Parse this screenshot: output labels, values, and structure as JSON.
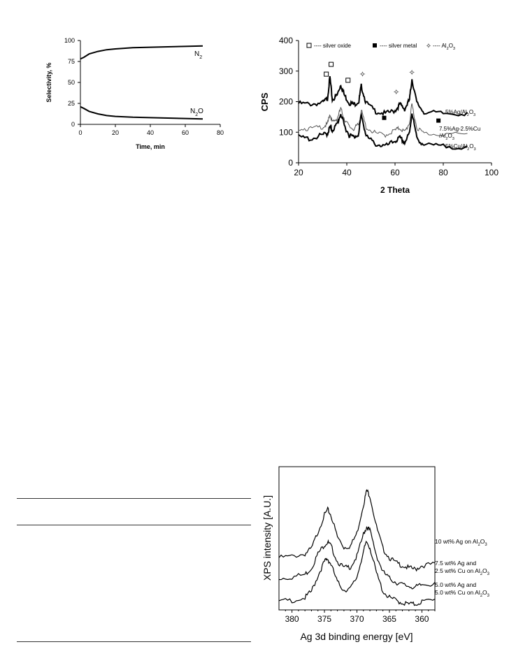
{
  "chart_data": [
    {
      "type": "line",
      "x_axis": {
        "label": "Time, min",
        "ticks": [
          "0",
          "20",
          "40",
          "60",
          "80"
        ],
        "range": [
          0,
          80
        ]
      },
      "y_axis": {
        "label": "Selectivity, %",
        "ticks": [
          "0",
          "25",
          "50",
          "75",
          "100"
        ],
        "range": [
          0,
          100
        ]
      },
      "series": [
        {
          "name": "N2",
          "label_main": "N",
          "label_sub": "2",
          "x": [
            0,
            2,
            5,
            10,
            15,
            20,
            30,
            40,
            50,
            60,
            70
          ],
          "y": [
            78,
            80,
            84,
            87,
            89,
            90,
            91.5,
            92,
            92.5,
            93,
            93.5
          ]
        },
        {
          "name": "N2O",
          "label_main": "N",
          "label_sub": "2",
          "label_end": "O",
          "x": [
            0,
            2,
            5,
            10,
            15,
            20,
            30,
            40,
            50,
            60,
            70
          ],
          "y": [
            21,
            19,
            15.5,
            12.5,
            10.5,
            9.5,
            8.5,
            8,
            7.5,
            7,
            6.5
          ]
        }
      ]
    },
    {
      "type": "line",
      "x_axis": {
        "label": "2 Theta",
        "ticks": [
          "20",
          "40",
          "60",
          "80",
          "100"
        ],
        "range": [
          20,
          100
        ]
      },
      "y_axis": {
        "label": "CPS",
        "ticks": [
          "0",
          "100",
          "200",
          "300",
          "400"
        ],
        "range": [
          0,
          400
        ]
      },
      "legend": [
        {
          "marker": "open-square",
          "text": "silver oxide"
        },
        {
          "marker": "filled-square",
          "text": "silver metal"
        },
        {
          "marker": "star",
          "text_main": "Al",
          "text_sub": "2",
          "text_end": "O",
          "text_sub2": "3"
        }
      ],
      "series": [
        {
          "name": "5%Ag/Al2O3",
          "label_parts": [
            [
              "5%Ag/Al",
              false
            ],
            [
              "2",
              true
            ],
            [
              "O",
              false
            ],
            [
              "3",
              true
            ]
          ],
          "x": [
            20,
            25,
            30,
            32,
            33,
            34,
            36,
            37.5,
            39,
            41,
            43,
            45,
            46,
            48,
            52,
            56,
            60,
            62,
            64,
            66,
            67,
            69,
            72,
            80,
            90
          ],
          "y": [
            198,
            196,
            200,
            215,
            285,
            210,
            225,
            260,
            225,
            200,
            195,
            205,
            255,
            200,
            172,
            165,
            175,
            195,
            180,
            210,
            278,
            200,
            170,
            165,
            165
          ]
        },
        {
          "name": "7.5%Ag-2.5%Cu/Al2O3",
          "label_parts": [
            [
              "7.5%Ag-2.5%Cu",
              false
            ]
          ],
          "label2_parts": [
            [
              "/Al",
              false
            ],
            [
              "2",
              true
            ],
            [
              "O",
              false
            ],
            [
              "3",
              true
            ]
          ],
          "x": [
            20,
            25,
            30,
            32,
            33,
            34,
            36,
            37.5,
            39,
            41,
            43,
            45,
            46,
            48,
            52,
            56,
            60,
            62,
            64,
            66,
            67,
            69,
            72,
            80,
            90
          ],
          "y": [
            118,
            115,
            122,
            130,
            165,
            135,
            150,
            180,
            148,
            122,
            115,
            130,
            175,
            120,
            100,
            95,
            110,
            118,
            104,
            135,
            195,
            120,
            100,
            98,
            96
          ]
        },
        {
          "name": "5%Cu/Al2O3",
          "label_parts": [
            [
              "5%Cu/Al",
              false
            ],
            [
              "2",
              true
            ],
            [
              "O",
              false
            ],
            [
              "3",
              true
            ]
          ],
          "x": [
            20,
            25,
            30,
            32,
            33,
            34,
            36,
            37.5,
            39,
            41,
            43,
            45,
            46,
            48,
            52,
            56,
            60,
            62,
            64,
            66,
            67,
            69,
            72,
            80,
            90
          ],
          "y": [
            88,
            82,
            95,
            100,
            120,
            110,
            130,
            165,
            125,
            95,
            88,
            100,
            165,
            90,
            65,
            58,
            75,
            85,
            70,
            100,
            170,
            85,
            62,
            58,
            55
          ]
        }
      ],
      "markers": [
        {
          "type": "open-square",
          "x": 31.5,
          "y": 290
        },
        {
          "type": "open-square",
          "x": 33.5,
          "y": 322
        },
        {
          "type": "open-square",
          "x": 40.5,
          "y": 270
        },
        {
          "type": "star",
          "x": 46.5,
          "y": 290
        },
        {
          "type": "star",
          "x": 60.5,
          "y": 232
        },
        {
          "type": "star",
          "x": 67,
          "y": 296
        },
        {
          "type": "filled-square",
          "x": 55.5,
          "y": 147
        },
        {
          "type": "filled-square",
          "x": 78,
          "y": 138
        }
      ]
    },
    {
      "type": "line",
      "x_axis": {
        "label": "Ag 3d binding energy [eV]",
        "ticks": [
          "380",
          "375",
          "370",
          "365",
          "360"
        ],
        "range": [
          382,
          358
        ],
        "reversed": true
      },
      "y_axis": {
        "label": "XPS intensity [A.U.]",
        "ticks": []
      },
      "series": [
        {
          "name": "10 wt% Ag on Al2O3",
          "label_lines": [
            [
              [
                "10 wt% Ag on Al",
                false
              ],
              [
                "2",
                true
              ],
              [
                "O",
                false
              ],
              [
                "3",
                true
              ]
            ]
          ],
          "x": [
            382,
            380,
            378,
            377,
            376,
            375,
            374.5,
            374,
            373,
            372,
            371,
            370,
            369,
            368.5,
            368,
            367,
            366,
            365,
            364,
            363,
            362,
            361,
            360,
            358
          ],
          "y": [
            0.36,
            0.37,
            0.39,
            0.43,
            0.56,
            0.69,
            0.73,
            0.69,
            0.52,
            0.44,
            0.45,
            0.55,
            0.77,
            0.88,
            0.84,
            0.6,
            0.43,
            0.36,
            0.32,
            0.3,
            0.28,
            0.27,
            0.3,
            0.31
          ]
        },
        {
          "name": "7.5 wt% Ag and 2.5 wt% Cu on Al2O3",
          "label_lines": [
            [
              [
                "7.5 wt% Ag and",
                false
              ]
            ],
            [
              [
                "2.5 wt% Cu on Al",
                false
              ],
              [
                "2",
                true
              ],
              [
                "O",
                false
              ],
              [
                "3",
                true
              ]
            ]
          ],
          "x": [
            382,
            380,
            378,
            377,
            376,
            375,
            374.5,
            374,
            373,
            372,
            371,
            370,
            369,
            368.5,
            368,
            367,
            366,
            365,
            364,
            363,
            362,
            361,
            360,
            358
          ],
          "y": [
            0.2,
            0.21,
            0.23,
            0.28,
            0.39,
            0.46,
            0.48,
            0.45,
            0.33,
            0.28,
            0.29,
            0.37,
            0.54,
            0.6,
            0.57,
            0.38,
            0.25,
            0.2,
            0.17,
            0.15,
            0.14,
            0.13,
            0.15,
            0.16
          ]
        },
        {
          "name": "5.0 wt% Ag and 5.0 wt% Cu on Al2O3",
          "label_lines": [
            [
              [
                "5.0 wt% Ag and",
                false
              ]
            ],
            [
              [
                "5.0 wt% Cu on Al",
                false
              ],
              [
                "2",
                true
              ],
              [
                "O",
                false
              ],
              [
                "3",
                true
              ]
            ]
          ],
          "x": [
            382,
            380,
            378,
            377,
            376,
            375,
            374.5,
            374,
            373,
            372,
            371,
            370,
            369,
            368.5,
            368,
            367,
            366,
            365,
            364,
            363,
            362,
            361,
            360,
            358
          ],
          "y": [
            0.02,
            0.03,
            0.05,
            0.1,
            0.22,
            0.33,
            0.35,
            0.31,
            0.17,
            0.11,
            0.12,
            0.21,
            0.41,
            0.48,
            0.44,
            0.24,
            0.1,
            0.05,
            0.03,
            0.01,
            0.0,
            0.0,
            0.02,
            0.03
          ]
        }
      ]
    }
  ]
}
